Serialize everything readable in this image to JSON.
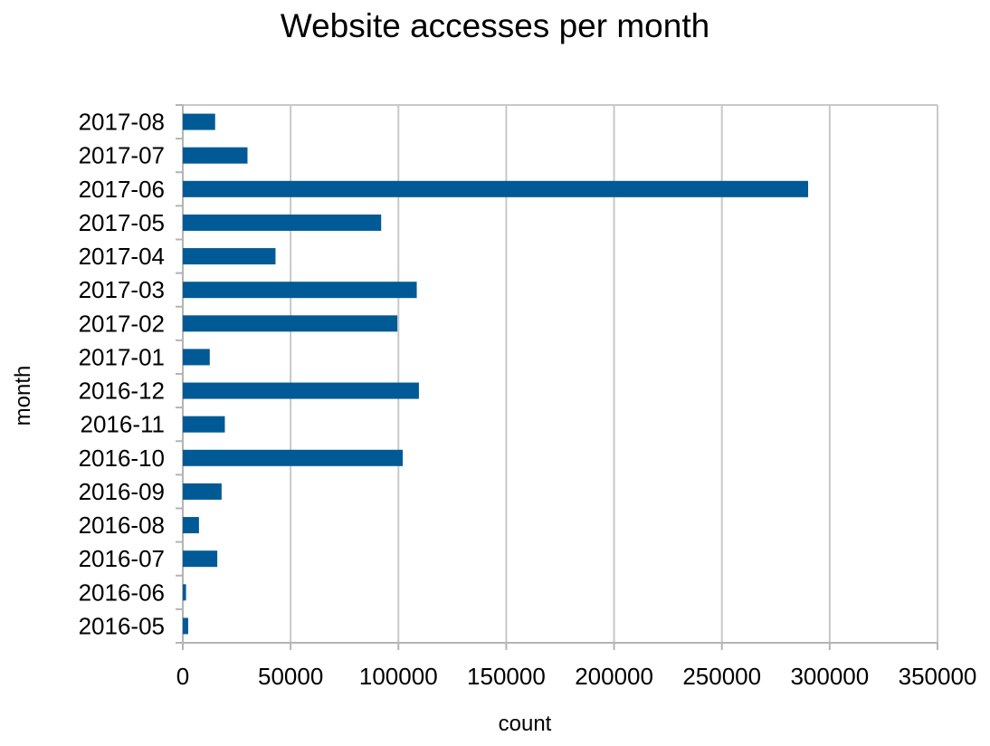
{
  "chart_data": {
    "type": "bar",
    "orientation": "horizontal",
    "title": "Website accesses per month",
    "xlabel": "count",
    "ylabel": "month",
    "categories": [
      "2016-05",
      "2016-06",
      "2016-07",
      "2016-08",
      "2016-09",
      "2016-10",
      "2016-11",
      "2016-12",
      "2017-01",
      "2017-02",
      "2017-03",
      "2017-04",
      "2017-05",
      "2017-06",
      "2017-07",
      "2017-08"
    ],
    "values": [
      2500,
      1500,
      16000,
      7500,
      18000,
      102000,
      19500,
      109500,
      12500,
      99500,
      108500,
      43000,
      92000,
      290000,
      30000,
      15000
    ],
    "xlim": [
      0,
      350000
    ],
    "xticks": [
      0,
      50000,
      100000,
      150000,
      200000,
      250000,
      300000,
      350000
    ],
    "grid": "vertical",
    "legend": "none",
    "bar_color": "#005a96",
    "grid_color": "#c8c8c8"
  }
}
